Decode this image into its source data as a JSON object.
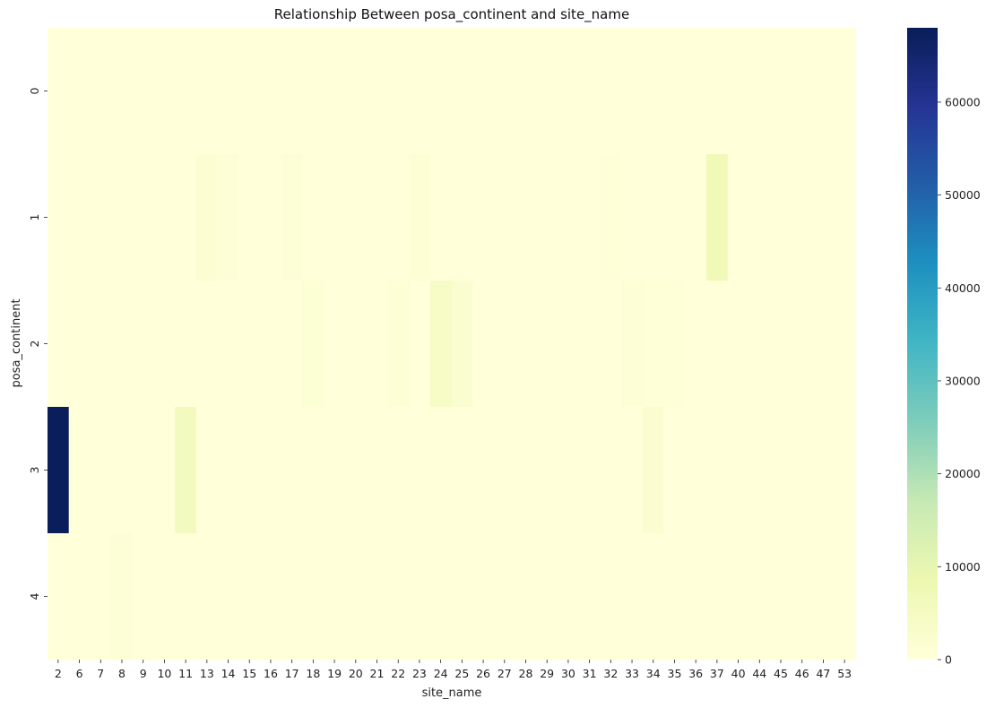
{
  "chart_data": {
    "type": "heatmap",
    "title": "Relationship Between posa_continent and site_name",
    "xlabel": "site_name",
    "ylabel": "posa_continent",
    "x_categories": [
      "2",
      "6",
      "7",
      "8",
      "9",
      "10",
      "11",
      "13",
      "14",
      "15",
      "16",
      "17",
      "18",
      "19",
      "20",
      "21",
      "22",
      "23",
      "24",
      "25",
      "26",
      "27",
      "28",
      "29",
      "30",
      "31",
      "32",
      "33",
      "34",
      "35",
      "36",
      "37",
      "40",
      "44",
      "45",
      "46",
      "47",
      "53"
    ],
    "y_categories": [
      "0",
      "1",
      "2",
      "3",
      "4"
    ],
    "values": [
      [
        0,
        0,
        0,
        0,
        0,
        0,
        0,
        0,
        0,
        0,
        0,
        0,
        0,
        0,
        0,
        0,
        0,
        0,
        0,
        0,
        0,
        0,
        0,
        0,
        0,
        0,
        0,
        0,
        0,
        0,
        0,
        0,
        0,
        0,
        0,
        0,
        0,
        0
      ],
      [
        0,
        0,
        0,
        0,
        0,
        0,
        0,
        1500,
        700,
        0,
        0,
        900,
        0,
        0,
        0,
        0,
        0,
        1100,
        0,
        0,
        0,
        0,
        0,
        0,
        0,
        0,
        500,
        0,
        0,
        0,
        0,
        7000,
        0,
        0,
        0,
        0,
        0,
        0
      ],
      [
        0,
        0,
        0,
        0,
        0,
        0,
        0,
        0,
        0,
        0,
        0,
        0,
        1300,
        0,
        0,
        0,
        1000,
        0,
        4000,
        2200,
        0,
        0,
        0,
        0,
        0,
        0,
        0,
        900,
        600,
        500,
        0,
        0,
        0,
        0,
        0,
        0,
        0,
        0
      ],
      [
        67500,
        0,
        0,
        0,
        0,
        0,
        5500,
        0,
        0,
        0,
        0,
        0,
        0,
        0,
        0,
        0,
        0,
        0,
        0,
        0,
        0,
        0,
        0,
        0,
        0,
        0,
        0,
        0,
        2000,
        0,
        0,
        0,
        0,
        0,
        0,
        0,
        0,
        0
      ],
      [
        0,
        0,
        0,
        900,
        0,
        0,
        0,
        0,
        0,
        0,
        0,
        0,
        0,
        0,
        0,
        0,
        0,
        0,
        0,
        0,
        0,
        0,
        0,
        0,
        0,
        0,
        0,
        0,
        0,
        0,
        0,
        0,
        0,
        0,
        0,
        0,
        0,
        0
      ]
    ],
    "colorbar": {
      "colormap": "YlGnBu",
      "min": 0,
      "max": 68000,
      "ticks": [
        0,
        10000,
        20000,
        30000,
        40000,
        50000,
        60000
      ],
      "tick_labels": [
        "0",
        "10000",
        "20000",
        "30000",
        "40000",
        "50000",
        "60000"
      ]
    }
  }
}
